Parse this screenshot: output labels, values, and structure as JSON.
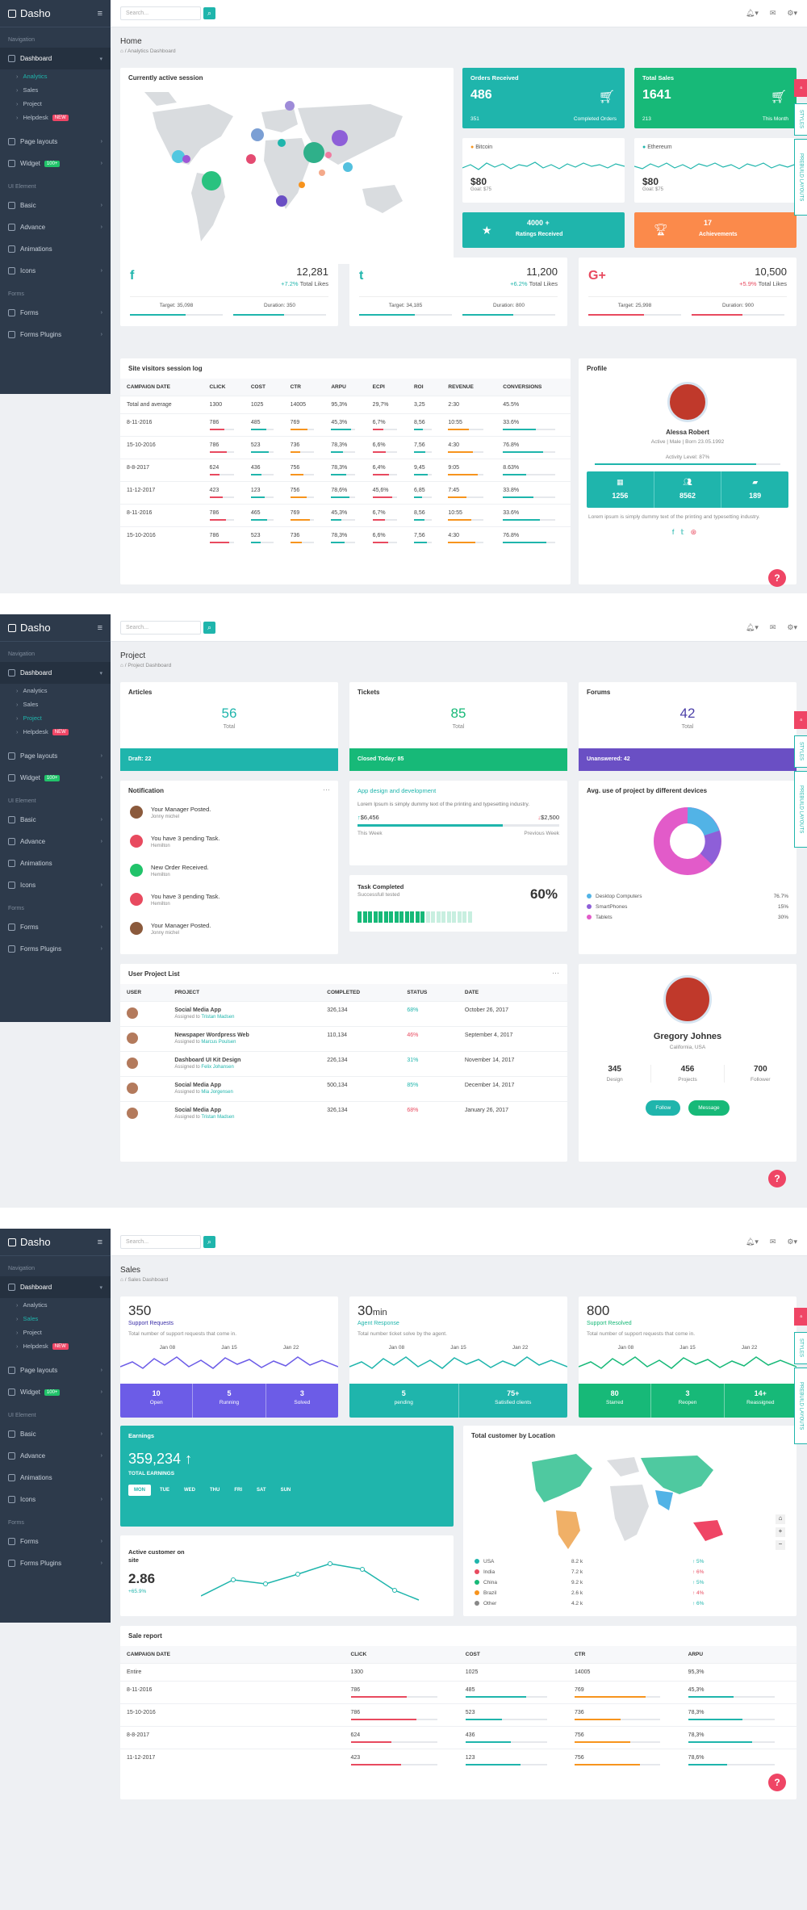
{
  "app": {
    "brand": "Dasho",
    "search_placeholder": "Search..."
  },
  "sidebar": {
    "nav_header": "Navigation",
    "ui_header": "UI Element",
    "forms_header": "Forms",
    "dashboard": "Dashboard",
    "subs": [
      "Analytics",
      "Sales",
      "Project",
      "Helpdesk"
    ],
    "new_badge": "NEW",
    "page_layouts": "Page layouts",
    "widget": "Widget",
    "widget_badge": "100+",
    "basic": "Basic",
    "advance": "Advance",
    "animations": "Animations",
    "icons": "Icons",
    "forms": "Forms",
    "forms_plugins": "Forms Plugins"
  },
  "side_tabs": {
    "styles": "STYLES",
    "layouts": "PREBUILD LAYOUTS"
  },
  "help": "?",
  "home": {
    "title": "Home",
    "breadcrumb": "Analytics Dashboard",
    "map_title": "Currently active session",
    "orders": {
      "title": "Orders Received",
      "value": "486",
      "sub": "351",
      "note": "Completed Orders"
    },
    "sales": {
      "title": "Total Sales",
      "value": "1641",
      "sub": "213",
      "note": "This Month"
    },
    "btc": {
      "name": "Bitcoin",
      "value": "$80",
      "goal": "Goal: $75"
    },
    "eth": {
      "name": "Ethereum",
      "value": "$80",
      "goal": "Goal: $75"
    },
    "ratings": {
      "value": "4000 +",
      "label": "Ratings Received"
    },
    "achieve": {
      "value": "17",
      "label": "Achievements"
    },
    "social": [
      {
        "icon": "f",
        "value": "12,281",
        "change": "+7.2%",
        "label": "Total Likes",
        "target": "Target: 35,098",
        "duration": "Duration: 350",
        "color": "#1fb5ac"
      },
      {
        "icon": "t",
        "value": "11,200",
        "change": "+6.2%",
        "label": "Total Likes",
        "target": "Target: 34,185",
        "duration": "Duration: 800",
        "color": "#1fb5ac"
      },
      {
        "icon": "G+",
        "value": "10,500",
        "change": "+5.9%",
        "label": "Total Likes",
        "target": "Target: 25,998",
        "duration": "Duration: 900",
        "color": "#e84a5f"
      }
    ],
    "log_title": "Site visitors session log",
    "log_headers": [
      "CAMPAIGN DATE",
      "CLICK",
      "COST",
      "CTR",
      "ARPU",
      "ECPI",
      "ROI",
      "REVENUE",
      "CONVERSIONS"
    ],
    "log_rows": [
      [
        "Total and average",
        "1300",
        "1025",
        "14005",
        "95,3%",
        "29,7%",
        "3,25",
        "2:30",
        "45.5%"
      ],
      [
        "8-11-2016",
        "786",
        "485",
        "769",
        "45,3%",
        "6,7%",
        "8,56",
        "10:55",
        "33.6%"
      ],
      [
        "15-10-2016",
        "786",
        "523",
        "736",
        "78,3%",
        "6,6%",
        "7,56",
        "4:30",
        "76.8%"
      ],
      [
        "8-8-2017",
        "624",
        "436",
        "756",
        "78,3%",
        "6,4%",
        "9,45",
        "9:05",
        "8.63%"
      ],
      [
        "11-12-2017",
        "423",
        "123",
        "756",
        "78,6%",
        "45,6%",
        "6,85",
        "7:45",
        "33.8%"
      ],
      [
        "8-11-2016",
        "786",
        "465",
        "769",
        "45,3%",
        "6,7%",
        "8,56",
        "10:55",
        "33.6%"
      ],
      [
        "15-10-2016",
        "786",
        "523",
        "736",
        "78,3%",
        "6,6%",
        "7,56",
        "4:30",
        "76.8%"
      ]
    ],
    "profile": {
      "title": "Profile",
      "name": "Alessa Robert",
      "info": "Active | Male | Born 23.05.1992",
      "activity": "Activity Level: 87%",
      "stats": [
        "1256",
        "8562",
        "189"
      ],
      "desc": "Lorem ipsum is simply dummy text of the printing and typesetting industry."
    }
  },
  "project": {
    "title": "Project",
    "breadcrumb": "Project Dashboard",
    "articles": {
      "title": "Articles",
      "value": "56",
      "sub": "Total",
      "footer": "Draft: 22"
    },
    "tickets": {
      "title": "Tickets",
      "value": "85",
      "sub": "Total",
      "footer": "Closed Today: 85"
    },
    "forums": {
      "title": "Forums",
      "value": "42",
      "sub": "Total",
      "footer": "Unanswered: 42"
    },
    "notif_title": "Notification",
    "notifs": [
      {
        "t": "Your Manager Posted.",
        "s": "Jonny michel"
      },
      {
        "t": "You have 3 pending Task.",
        "s": "Hemilton"
      },
      {
        "t": "New Order Received.",
        "s": "Hemilton"
      },
      {
        "t": "You have 3 pending Task.",
        "s": "Hemilton"
      },
      {
        "t": "Your Manager Posted.",
        "s": "Jonny michel"
      }
    ],
    "app": {
      "title": "App design and development",
      "desc": "Lorem Ipsum is simply dummy text of the printing and typesetting industry.",
      "v1": "$6,456",
      "v2": "$2,500",
      "l1": "This Week",
      "l2": "Previous Week"
    },
    "task": {
      "title": "Task Completed",
      "sub": "Successfull tested",
      "pct": "60%"
    },
    "devices": {
      "title": "Avg. use of project by different devices",
      "items": [
        {
          "n": "Desktop Computers",
          "v": "76.7%",
          "c": "#52b3e6"
        },
        {
          "n": "SmartPhones",
          "v": "15%",
          "c": "#8e5fd8"
        },
        {
          "n": "Tablets",
          "v": "30%",
          "c": "#e25bc9"
        }
      ]
    },
    "ulist_title": "User Project List",
    "ulist_headers": [
      "USER",
      "PROJECT",
      "COMPLETED",
      "STATUS",
      "DATE"
    ],
    "ulist": [
      {
        "p": "Social Media App",
        "a": "Assigned to",
        "who": "Tristan Madsen",
        "c": "326,134",
        "s": "68%",
        "d": "October 26, 2017",
        "sc": "#1fb5ac"
      },
      {
        "p": "Newspaper Wordpress Web",
        "a": "Assigned to",
        "who": "Marcus Poulsen",
        "c": "110,134",
        "s": "46%",
        "d": "September 4, 2017",
        "sc": "#e84a5f"
      },
      {
        "p": "Dashboard UI Kit Design",
        "a": "Assigned to",
        "who": "Felix Johansen",
        "c": "226,134",
        "s": "31%",
        "d": "November 14, 2017",
        "sc": "#1fb5ac"
      },
      {
        "p": "Social Media App",
        "a": "Assigned to",
        "who": "Mia Jorgensen",
        "c": "500,134",
        "s": "85%",
        "d": "December 14, 2017",
        "sc": "#1fb5ac"
      },
      {
        "p": "Social Media App",
        "a": "Assigned to",
        "who": "Tristan Madsen",
        "c": "326,134",
        "s": "68%",
        "d": "January 26, 2017",
        "sc": "#e84a5f"
      }
    ],
    "gregory": {
      "name": "Gregory Johnes",
      "loc": "California, USA",
      "stats": [
        {
          "v": "345",
          "l": "Design"
        },
        {
          "v": "456",
          "l": "Projects"
        },
        {
          "v": "700",
          "l": "Follower"
        }
      ],
      "follow": "Follow",
      "message": "Message"
    }
  },
  "sales": {
    "title": "Sales",
    "breadcrumb": "Sales Dashboard",
    "cards": [
      {
        "v": "350",
        "u": "",
        "l": "Support Requests",
        "d": "Total number of support requests that come in.",
        "dates": [
          "Jan 08",
          "Jan 15",
          "Jan 22"
        ],
        "stats": [
          {
            "v": "10",
            "l": "Open"
          },
          {
            "v": "5",
            "l": "Running"
          },
          {
            "v": "3",
            "l": "Solved"
          }
        ],
        "c": "#6c5ce7",
        "lc": "#3b2fa8"
      },
      {
        "v": "30",
        "u": "min",
        "l": "Agent Response",
        "d": "Total number ticket solve by the agent.",
        "dates": [
          "Jan 08",
          "Jan 15",
          "Jan 22"
        ],
        "stats": [
          {
            "v": "5",
            "l": "pending"
          },
          {
            "v": "75+",
            "l": "Satisfied clients"
          }
        ],
        "c": "#1fb5ac",
        "lc": "#1fb5ac"
      },
      {
        "v": "800",
        "u": "",
        "l": "Support Resolved",
        "d": "Total number of support requests that come in.",
        "dates": [
          "Jan 08",
          "Jan 15",
          "Jan 22"
        ],
        "stats": [
          {
            "v": "80",
            "l": "Starred"
          },
          {
            "v": "3",
            "l": "Reopen"
          },
          {
            "v": "14+",
            "l": "Reassigned"
          }
        ],
        "c": "#17b978",
        "lc": "#17b978"
      }
    ],
    "earnings": {
      "title": "Earnings",
      "value": "359,234",
      "sub": "TOTAL EARNINGS",
      "days": [
        "MON",
        "TUE",
        "WED",
        "THU",
        "FRI",
        "SAT",
        "SUN"
      ]
    },
    "active": {
      "title": "Active customer on site",
      "value": "2.86",
      "change": "+65.9%"
    },
    "location": {
      "title": "Total customer by Location",
      "rows": [
        {
          "n": "USA",
          "v": "8.2 k",
          "p": "↑ 5%",
          "c": "#1fb5ac",
          "pc": "#1fb5ac"
        },
        {
          "n": "India",
          "v": "7.2 k",
          "p": "↑ 6%",
          "c": "#e84a5f",
          "pc": "#e84a5f"
        },
        {
          "n": "China",
          "v": "9.2 k",
          "p": "↑ 5%",
          "c": "#17b978",
          "pc": "#1fb5ac"
        },
        {
          "n": "Brazil",
          "v": "2.6 k",
          "p": "↑ 4%",
          "c": "#f7941d",
          "pc": "#e84a5f"
        },
        {
          "n": "Other",
          "v": "4.2 k",
          "p": "↑ 6%",
          "c": "#888888",
          "pc": "#1fb5ac"
        }
      ]
    },
    "report_title": "Sale report",
    "report_headers": [
      "CAMPAIGN DATE",
      "CLICK",
      "COST",
      "CTR",
      "ARPU"
    ],
    "report_rows": [
      [
        "Entire",
        "1300",
        "1025",
        "14005",
        "95,3%"
      ],
      [
        "8-11-2016",
        "786",
        "485",
        "769",
        "45,3%"
      ],
      [
        "15-10-2016",
        "786",
        "523",
        "736",
        "78,3%"
      ],
      [
        "8-8-2017",
        "624",
        "436",
        "756",
        "78,3%"
      ],
      [
        "11-12-2017",
        "423",
        "123",
        "756",
        "78,6%"
      ]
    ]
  }
}
